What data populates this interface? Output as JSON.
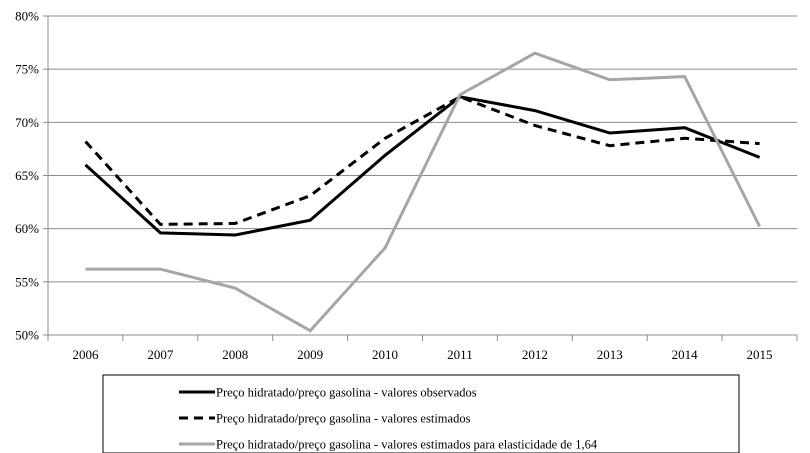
{
  "chart_data": {
    "type": "line",
    "title": "",
    "xlabel": "",
    "ylabel": "",
    "categories": [
      "2006",
      "2007",
      "2008",
      "2009",
      "2010",
      "2011",
      "2012",
      "2013",
      "2014",
      "2015"
    ],
    "ylim": [
      50,
      80
    ],
    "yticks": [
      "50%",
      "55%",
      "60%",
      "65%",
      "70%",
      "75%",
      "80%"
    ],
    "ytick_values": [
      50,
      55,
      60,
      65,
      70,
      75,
      80
    ],
    "grid": true,
    "legend_position": "bottom",
    "series": [
      {
        "name": "Preço hidratado/preço gasolina - valores observados",
        "values": [
          66.0,
          59.6,
          59.4,
          60.8,
          66.9,
          72.4,
          71.1,
          69.0,
          69.5,
          66.7
        ],
        "color": "#000000",
        "style": "solid"
      },
      {
        "name": "Preço hidratado/preço gasolina - valores estimados",
        "values": [
          68.2,
          60.4,
          60.5,
          63.1,
          68.5,
          72.4,
          69.7,
          67.8,
          68.5,
          68.0
        ],
        "color": "#000000",
        "style": "dashed"
      },
      {
        "name": "Preço hidratado/preço gasolina - valores estimados para elasticidade de 1,64",
        "values": [
          56.2,
          56.2,
          54.4,
          50.4,
          58.2,
          72.6,
          76.5,
          74.0,
          74.3,
          60.2
        ],
        "color": "#a6a6a6",
        "style": "solid"
      }
    ]
  }
}
